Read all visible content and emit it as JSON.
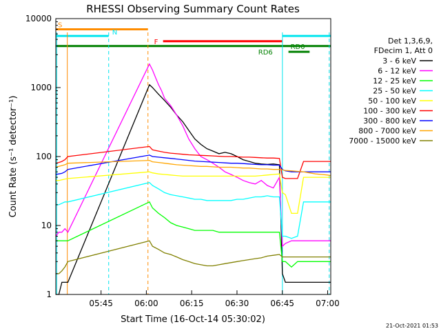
{
  "chart_data": {
    "type": "line",
    "title": "RHESSI Observing Summary Count Rates",
    "xlabel": "Start Time (16-Oct-14 05:30:02)",
    "ylabel": "Count Rate (s⁻¹ detector⁻¹)",
    "y_scale": "log",
    "ylim": [
      1,
      10000
    ],
    "xlim_minutes": [
      0,
      91
    ],
    "x_ticks": [
      {
        "label": "05:45",
        "value": 14.97
      },
      {
        "label": "06:00",
        "value": 29.97
      },
      {
        "label": "06:15",
        "value": 44.97
      },
      {
        "label": "06:30",
        "value": 59.97
      },
      {
        "label": "06:45",
        "value": 74.97
      },
      {
        "label": "07:00",
        "value": 89.97
      }
    ],
    "y_ticks": [
      {
        "label": "1",
        "value": 1
      },
      {
        "label": "10",
        "value": 10
      },
      {
        "label": "100",
        "value": 100
      },
      {
        "label": "1000",
        "value": 1000
      },
      {
        "label": "10000",
        "value": 10000
      }
    ],
    "legend_header": [
      "Det 1,3,6,9,",
      "FDecim 1, Att 0"
    ],
    "legend_position": "right",
    "series": [
      {
        "name": "3 - 6 keV",
        "color": "#000000",
        "x": [
          0,
          1,
          2,
          3,
          4,
          31,
          32,
          34,
          36,
          38,
          40,
          42,
          44,
          46,
          48,
          50,
          52,
          54,
          56,
          58,
          60,
          62,
          64,
          66,
          68,
          70,
          72,
          74,
          75,
          76,
          78,
          80,
          82,
          84,
          86,
          88,
          90,
          91
        ],
        "y": [
          1,
          1,
          1.5,
          1.5,
          1.5,
          1100,
          1000,
          800,
          650,
          520,
          400,
          320,
          240,
          180,
          150,
          130,
          120,
          110,
          115,
          110,
          100,
          90,
          85,
          80,
          78,
          77,
          78,
          76,
          2,
          1.5,
          1.5,
          1.5,
          1.5,
          1.5,
          1.5,
          1.5,
          1.5,
          1.5
        ]
      },
      {
        "name": "6 - 12 keV",
        "color": "#ff00ff",
        "x": [
          0,
          1,
          2,
          3,
          4,
          31,
          32,
          33,
          34,
          35,
          36,
          38,
          40,
          42,
          44,
          46,
          48,
          50,
          52,
          54,
          56,
          58,
          60,
          62,
          64,
          66,
          68,
          70,
          72,
          74,
          75,
          76,
          78,
          80,
          82,
          84,
          86,
          88,
          90,
          91
        ],
        "y": [
          7,
          8,
          8,
          9,
          8,
          2200,
          1800,
          1400,
          1100,
          900,
          700,
          550,
          400,
          280,
          180,
          130,
          100,
          90,
          80,
          70,
          60,
          55,
          50,
          45,
          42,
          40,
          45,
          38,
          35,
          50,
          5,
          5.5,
          6,
          6,
          6,
          6,
          6,
          6,
          6,
          6
        ]
      },
      {
        "name": "12 - 25 keV",
        "color": "#00ff00",
        "x": [
          0,
          1,
          2,
          3,
          4,
          31,
          32,
          34,
          36,
          38,
          40,
          42,
          44,
          46,
          48,
          50,
          52,
          54,
          56,
          58,
          60,
          62,
          64,
          66,
          68,
          70,
          72,
          74,
          75,
          76,
          78,
          80,
          82,
          84,
          86,
          88,
          90,
          91
        ],
        "y": [
          6,
          6,
          6,
          6,
          6,
          22,
          18,
          15,
          13,
          11,
          10,
          9.5,
          9,
          8.5,
          8.5,
          8.5,
          8.5,
          8,
          8,
          8,
          8,
          8,
          8,
          8,
          8,
          8,
          8,
          8,
          3,
          3,
          2.5,
          3,
          3,
          3,
          3,
          3,
          3,
          3
        ]
      },
      {
        "name": "25 - 50 keV",
        "color": "#00ffff",
        "x": [
          0,
          1,
          2,
          3,
          4,
          31,
          32,
          34,
          36,
          38,
          40,
          42,
          44,
          46,
          48,
          50,
          52,
          54,
          56,
          58,
          60,
          62,
          64,
          66,
          68,
          70,
          72,
          74,
          75,
          76,
          78,
          80,
          82,
          84,
          86,
          88,
          90,
          91
        ],
        "y": [
          20,
          20,
          21,
          22,
          22,
          42,
          38,
          34,
          30,
          28,
          27,
          26,
          25,
          24,
          24,
          23,
          23,
          23,
          23,
          23,
          24,
          24,
          25,
          26,
          26,
          27,
          26,
          26,
          7,
          7,
          6.5,
          7,
          22,
          22,
          22,
          22,
          22,
          22
        ]
      },
      {
        "name": "50 - 100 keV",
        "color": "#ffff00",
        "x": [
          0,
          1,
          2,
          3,
          4,
          31,
          32,
          34,
          36,
          38,
          40,
          42,
          44,
          46,
          48,
          50,
          52,
          54,
          56,
          58,
          60,
          62,
          64,
          66,
          68,
          70,
          72,
          74,
          75,
          76,
          78,
          80,
          82,
          84,
          86,
          88,
          90,
          91
        ],
        "y": [
          45,
          45,
          46,
          47,
          48,
          60,
          58,
          56,
          55,
          54,
          53,
          52,
          52,
          52,
          52,
          52,
          52,
          52,
          52,
          52,
          52,
          52,
          52,
          52,
          53,
          54,
          55,
          56,
          30,
          28,
          15,
          15,
          50,
          50,
          50,
          50,
          50,
          50
        ]
      },
      {
        "name": "100 - 300 keV",
        "color": "#ff0000",
        "x": [
          0,
          1,
          2,
          3,
          4,
          31,
          32,
          34,
          36,
          38,
          40,
          42,
          44,
          46,
          48,
          50,
          52,
          54,
          56,
          58,
          60,
          62,
          64,
          66,
          68,
          70,
          72,
          74,
          75,
          76,
          78,
          80,
          82,
          84,
          86,
          88,
          90,
          91
        ],
        "y": [
          80,
          82,
          85,
          90,
          100,
          140,
          125,
          120,
          115,
          112,
          110,
          108,
          106,
          105,
          104,
          103,
          102,
          101,
          100,
          100,
          99,
          98,
          98,
          97,
          96,
          95,
          95,
          94,
          50,
          48,
          48,
          48,
          85,
          85,
          85,
          85,
          85,
          85
        ]
      },
      {
        "name": "300 - 800 keV",
        "color": "#0000ff",
        "x": [
          0,
          1,
          2,
          3,
          4,
          31,
          32,
          34,
          36,
          38,
          40,
          42,
          44,
          46,
          48,
          50,
          52,
          54,
          56,
          58,
          60,
          62,
          64,
          66,
          68,
          70,
          72,
          74,
          75,
          76,
          78,
          80,
          82,
          84,
          86,
          88,
          90,
          91
        ],
        "y": [
          55,
          56,
          57,
          60,
          65,
          105,
          100,
          98,
          96,
          94,
          92,
          90,
          88,
          86,
          85,
          84,
          83,
          82,
          81,
          80,
          80,
          79,
          78,
          77,
          76,
          76,
          75,
          75,
          65,
          62,
          60,
          60,
          60,
          60,
          60,
          60,
          60,
          60
        ]
      },
      {
        "name": "800 - 7000 keV",
        "color": "#ffa500",
        "x": [
          0,
          1,
          2,
          3,
          4,
          31,
          32,
          34,
          36,
          38,
          40,
          42,
          44,
          46,
          48,
          50,
          52,
          54,
          56,
          58,
          60,
          62,
          64,
          66,
          68,
          70,
          72,
          74,
          75,
          76,
          78,
          80,
          82,
          84,
          86,
          88,
          90,
          91
        ],
        "y": [
          70,
          72,
          74,
          76,
          80,
          88,
          84,
          82,
          80,
          78,
          76,
          75,
          74,
          73,
          72,
          72,
          71,
          70,
          70,
          70,
          69,
          68,
          68,
          67,
          66,
          66,
          65,
          65,
          64,
          63,
          62,
          61,
          60,
          58,
          56,
          55,
          54,
          53
        ]
      },
      {
        "name": "7000 - 15000 keV",
        "color": "#808000",
        "x": [
          0,
          1,
          2,
          3,
          4,
          31,
          32,
          34,
          36,
          38,
          40,
          42,
          44,
          46,
          48,
          50,
          52,
          54,
          56,
          58,
          60,
          62,
          64,
          66,
          68,
          70,
          72,
          74,
          75,
          76,
          78,
          80,
          82,
          84,
          86,
          88,
          90,
          91
        ],
        "y": [
          2,
          2,
          2.2,
          2.5,
          3,
          6,
          5,
          4.5,
          4,
          3.8,
          3.5,
          3.2,
          3,
          2.8,
          2.7,
          2.6,
          2.6,
          2.7,
          2.8,
          2.9,
          3,
          3.1,
          3.2,
          3.3,
          3.4,
          3.6,
          3.7,
          3.8,
          3.5,
          3.5,
          3.5,
          3.5,
          3.5,
          3.5,
          3.5,
          3.5,
          3.5,
          3.5
        ]
      }
    ],
    "flag_bars": [
      {
        "label": "S",
        "color": "#ff8c00",
        "x0": 0,
        "x1": 30.5,
        "y": 7000
      },
      {
        "label": "N",
        "color": "#00e5ee",
        "x0": 0,
        "x1": 17.5,
        "y": 5600
      },
      {
        "label": "F",
        "color": "#ff0000",
        "x0": 35.5,
        "x1": 75,
        "y": 4700
      },
      {
        "label": "",
        "color": "#00e5ee",
        "x0": 75,
        "x1": 91,
        "y": 5600
      },
      {
        "label": "RD6",
        "color": "#008000",
        "x0": 0,
        "x1": 91,
        "y": 4000
      },
      {
        "label": "RD0",
        "color": "#008000",
        "x0": 77,
        "x1": 84,
        "y": 3300
      }
    ],
    "event_lines": [
      {
        "x": 0.3,
        "color": "#00e5ee",
        "style": "solid"
      },
      {
        "x": 3.8,
        "color": "#ff8c00",
        "style": "solid"
      },
      {
        "x": 17.5,
        "color": "#00e5ee",
        "style": "dashed"
      },
      {
        "x": 30.5,
        "color": "#ff8c00",
        "style": "dashed"
      },
      {
        "x": 75,
        "color": "#00e5ee",
        "style": "solid"
      },
      {
        "x": 90.5,
        "color": "#00e5ee",
        "style": "dashed"
      }
    ],
    "timestamp": "21-Oct-2021 01:53"
  }
}
